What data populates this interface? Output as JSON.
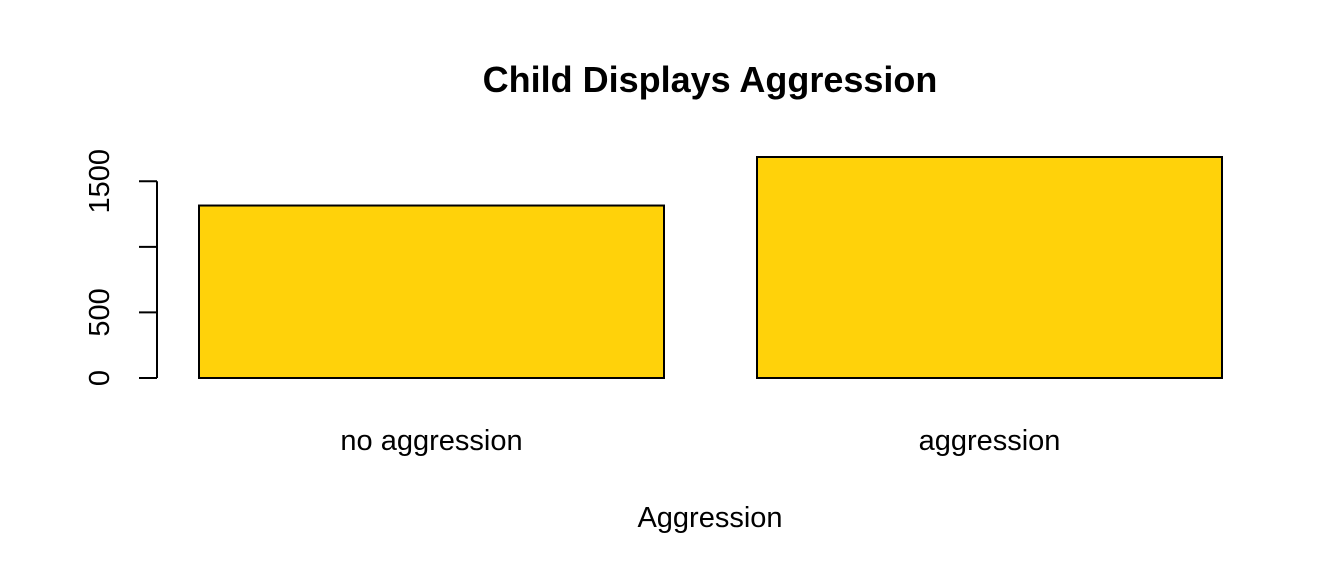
{
  "chart_data": {
    "type": "bar",
    "title": "Child Displays Aggression",
    "xlabel": "Aggression",
    "ylabel": "",
    "categories": [
      "no aggression",
      "aggression"
    ],
    "values": [
      1315,
      1685
    ],
    "ylim": [
      0,
      1685
    ],
    "yticks": [
      0,
      500,
      1000,
      1500
    ],
    "ytick_labels": [
      "0",
      "500",
      "",
      "1500"
    ],
    "bar_color": "#FFD20A",
    "grid": false,
    "legend": "none"
  }
}
